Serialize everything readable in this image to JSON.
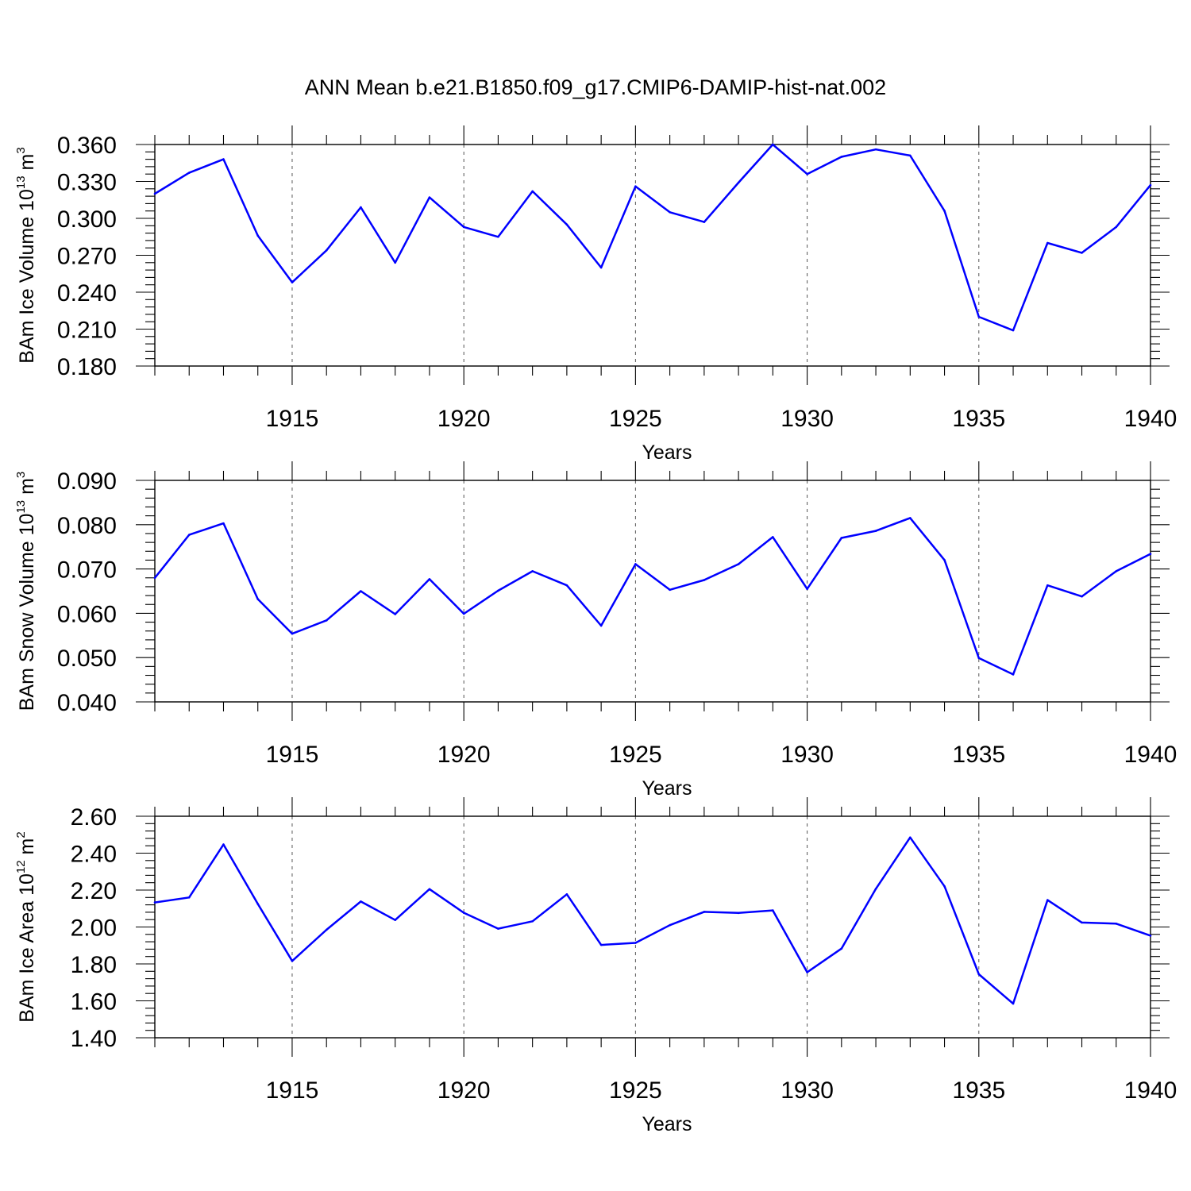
{
  "title": "ANN Mean b.e21.B1850.f09_g17.CMIP6-DAMIP-hist-nat.002",
  "colors": {
    "series": "#0000ff",
    "axes": "#000000",
    "grid": "#555555"
  },
  "chart_data": [
    {
      "type": "line",
      "ylabel_main": "BAm Ice Volume 10",
      "ylabel_exp": "13",
      "ylabel_unit": " m",
      "ylabel_unit_exp": "3",
      "xlabel": "Years",
      "xlim": [
        1911,
        1940
      ],
      "ylim": [
        0.18,
        0.36
      ],
      "x_ticks": [
        1915,
        1920,
        1925,
        1930,
        1935,
        1940
      ],
      "y_ticks": [
        "0.180",
        "0.210",
        "0.240",
        "0.270",
        "0.300",
        "0.330",
        "0.360"
      ],
      "y_tick_values": [
        0.18,
        0.21,
        0.24,
        0.27,
        0.3,
        0.33,
        0.36
      ],
      "y_minor_step": 0.006,
      "grid": "vertical dashed at major x ticks",
      "x": [
        1911,
        1912,
        1913,
        1914,
        1915,
        1916,
        1917,
        1918,
        1919,
        1920,
        1921,
        1922,
        1923,
        1924,
        1925,
        1926,
        1927,
        1928,
        1929,
        1930,
        1931,
        1932,
        1933,
        1934,
        1935,
        1936,
        1937,
        1938,
        1939,
        1940
      ],
      "values": [
        0.32,
        0.337,
        0.348,
        0.286,
        0.248,
        0.274,
        0.309,
        0.264,
        0.317,
        0.293,
        0.285,
        0.322,
        0.295,
        0.26,
        0.326,
        0.305,
        0.297,
        0.329,
        0.36,
        0.336,
        0.35,
        0.356,
        0.351,
        0.306,
        0.22,
        0.209,
        0.28,
        0.272,
        0.293,
        0.327
      ]
    },
    {
      "type": "line",
      "ylabel_main": "BAm Snow Volume 10",
      "ylabel_exp": "13",
      "ylabel_unit": " m",
      "ylabel_unit_exp": "3",
      "xlabel": "Years",
      "xlim": [
        1911,
        1940
      ],
      "ylim": [
        0.04,
        0.09
      ],
      "x_ticks": [
        1915,
        1920,
        1925,
        1930,
        1935,
        1940
      ],
      "y_ticks": [
        "0.040",
        "0.050",
        "0.060",
        "0.070",
        "0.080",
        "0.090"
      ],
      "y_tick_values": [
        0.04,
        0.05,
        0.06,
        0.07,
        0.08,
        0.09
      ],
      "y_minor_step": 0.002,
      "grid": "vertical dashed at major x ticks",
      "x": [
        1911,
        1912,
        1913,
        1914,
        1915,
        1916,
        1917,
        1918,
        1919,
        1920,
        1921,
        1922,
        1923,
        1924,
        1925,
        1926,
        1927,
        1928,
        1929,
        1930,
        1931,
        1932,
        1933,
        1934,
        1935,
        1936,
        1937,
        1938,
        1939,
        1940
      ],
      "values": [
        0.068,
        0.0777,
        0.0803,
        0.0632,
        0.0554,
        0.0584,
        0.065,
        0.0598,
        0.0677,
        0.0599,
        0.0651,
        0.0695,
        0.0663,
        0.0572,
        0.0711,
        0.0653,
        0.0675,
        0.0711,
        0.0772,
        0.0655,
        0.077,
        0.0786,
        0.0815,
        0.072,
        0.0499,
        0.0462,
        0.0663,
        0.0638,
        0.0695,
        0.0734
      ]
    },
    {
      "type": "line",
      "ylabel_main": "BAm Ice Area 10",
      "ylabel_exp": "12",
      "ylabel_unit": " m",
      "ylabel_unit_exp": "2",
      "xlabel": "Years",
      "xlim": [
        1911,
        1940
      ],
      "ylim": [
        1.4,
        2.6
      ],
      "x_ticks": [
        1915,
        1920,
        1925,
        1930,
        1935,
        1940
      ],
      "y_ticks": [
        "1.40",
        "1.60",
        "1.80",
        "2.00",
        "2.20",
        "2.40",
        "2.60"
      ],
      "y_tick_values": [
        1.4,
        1.6,
        1.8,
        2.0,
        2.2,
        2.4,
        2.6
      ],
      "y_minor_step": 0.04,
      "grid": "vertical dashed at major x ticks",
      "x": [
        1911,
        1912,
        1913,
        1914,
        1915,
        1916,
        1917,
        1918,
        1919,
        1920,
        1921,
        1922,
        1923,
        1924,
        1925,
        1926,
        1927,
        1928,
        1929,
        1930,
        1931,
        1932,
        1933,
        1934,
        1935,
        1936,
        1937,
        1938,
        1939,
        1940
      ],
      "values": [
        2.133,
        2.16,
        2.447,
        2.125,
        1.816,
        1.985,
        2.138,
        2.038,
        2.205,
        2.077,
        1.991,
        2.031,
        2.177,
        1.903,
        1.914,
        2.01,
        2.082,
        2.076,
        2.09,
        1.755,
        1.883,
        2.207,
        2.485,
        2.22,
        1.744,
        1.585,
        2.146,
        2.024,
        2.018,
        1.953
      ]
    }
  ]
}
